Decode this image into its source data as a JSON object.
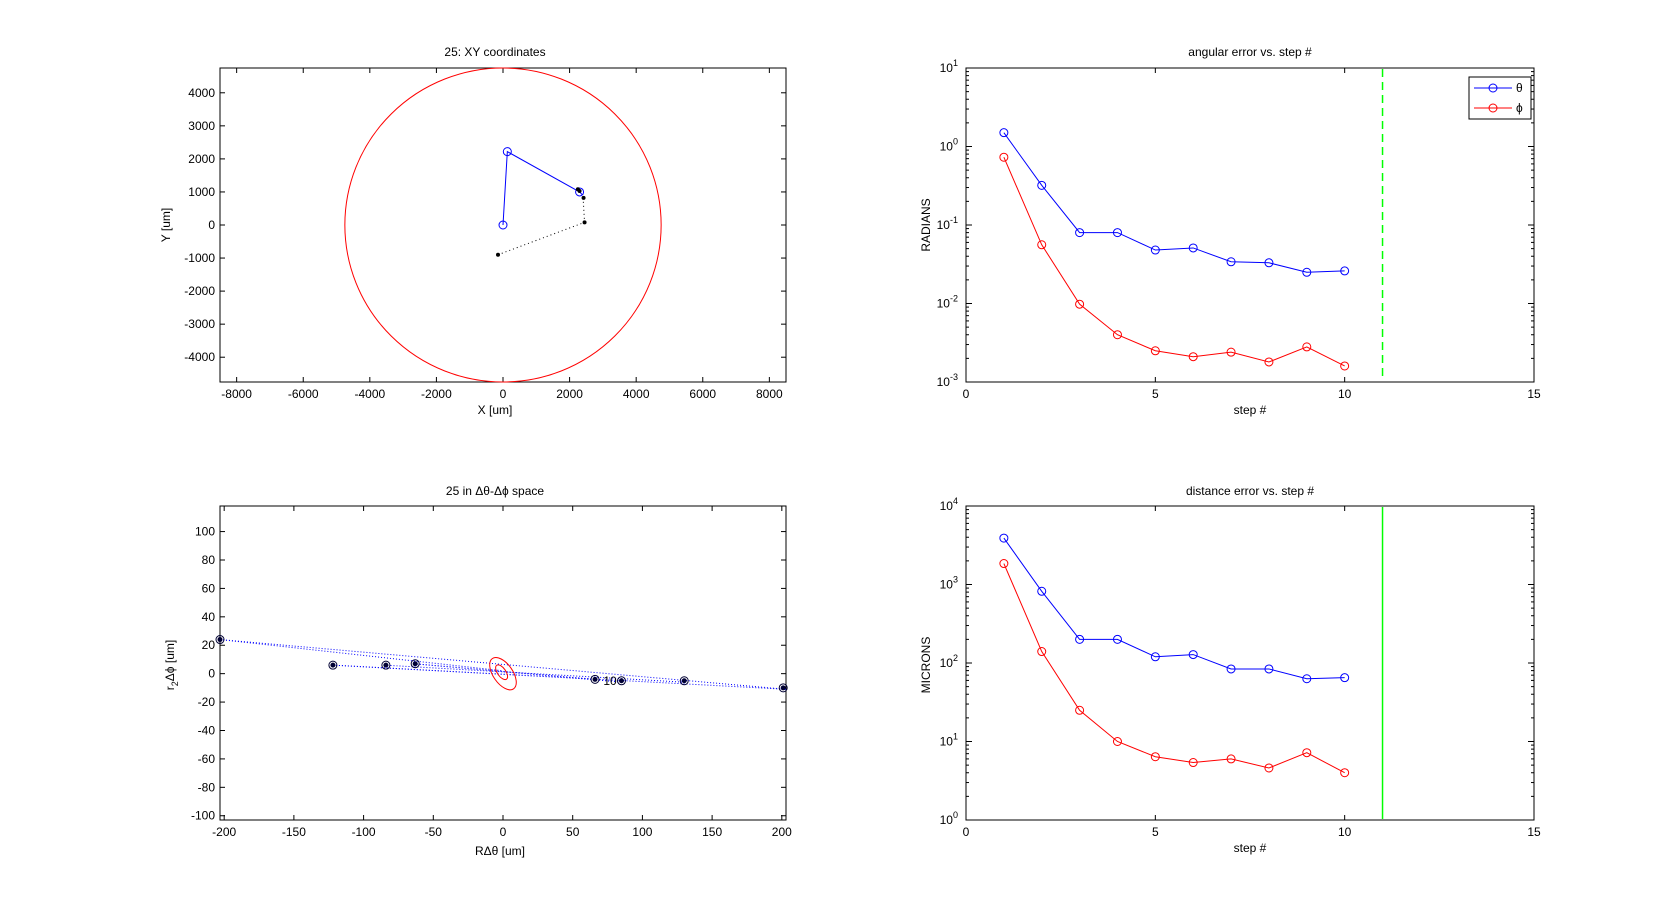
{
  "chart_data": [
    {
      "id": "xy",
      "type": "scatter",
      "title": "25: XY coordinates",
      "xlabel": "X [um]",
      "ylabel": "Y [um]",
      "xlim": [
        -8500,
        8500
      ],
      "ylim": [
        -4750,
        4750
      ],
      "xticks": [
        -8000,
        -6000,
        -4000,
        -2000,
        0,
        2000,
        4000,
        6000,
        8000
      ],
      "yticks": [
        -4000,
        -3000,
        -2000,
        -1000,
        0,
        1000,
        2000,
        3000,
        4000
      ],
      "circle": {
        "cx": 0,
        "cy": 0,
        "r": 4750,
        "color": "#ff0000"
      },
      "path": {
        "color": "#0000ff",
        "points": [
          [
            0,
            0
          ],
          [
            130,
            2220
          ],
          [
            2300,
            1000
          ],
          [
            2380,
            920
          ]
        ]
      },
      "dotted_path": {
        "color": "#000000",
        "points": [
          [
            -150,
            -900
          ],
          [
            2450,
            80
          ],
          [
            2400,
            920
          ],
          [
            2250,
            1050
          ]
        ]
      },
      "markers": {
        "color": "#000000",
        "points": [
          [
            -150,
            -900
          ],
          [
            2450,
            80
          ],
          [
            2420,
            820
          ],
          [
            2250,
            1080
          ],
          [
            2300,
            1030
          ]
        ]
      }
    },
    {
      "id": "angular",
      "type": "line",
      "title": "angular error vs. step #",
      "xlabel": "step #",
      "ylabel": "RADIANS",
      "yscale": "log",
      "xlim": [
        0,
        15
      ],
      "ylim_exp": [
        -3,
        1
      ],
      "xticks": [
        0,
        5,
        10,
        15
      ],
      "legend": {
        "placement": "top-right",
        "entries": [
          "θ",
          "ϕ"
        ]
      },
      "vline": {
        "x": 11,
        "color": "#00ff00",
        "style": "dashed"
      },
      "x": [
        1,
        2,
        3,
        4,
        5,
        6,
        7,
        8,
        9,
        10
      ],
      "series": [
        {
          "name": "θ",
          "color": "#0000ff",
          "values": [
            1.5,
            0.32,
            0.08,
            0.08,
            0.048,
            0.051,
            0.034,
            0.033,
            0.025,
            0.026
          ]
        },
        {
          "name": "ϕ",
          "color": "#ff0000",
          "values": [
            0.73,
            0.056,
            0.0098,
            0.004,
            0.0025,
            0.0021,
            0.0024,
            0.0018,
            0.0028,
            0.0016
          ]
        }
      ]
    },
    {
      "id": "dtheta",
      "type": "scatter",
      "title": "25 in Δθ-Δϕ space",
      "xlabel": "RΔθ [um]",
      "ylabel_main": "r",
      "ylabel_sub": "2",
      "ylabel_rest": "Δϕ [um]",
      "xlim": [
        -203,
        203
      ],
      "ylim": [
        -103,
        118
      ],
      "xticks": [
        -200,
        -150,
        -100,
        -50,
        0,
        50,
        100,
        150,
        200
      ],
      "yticks": [
        -100,
        -80,
        -60,
        -40,
        -20,
        0,
        20,
        40,
        60,
        80,
        100
      ],
      "point_label": {
        "text": "10",
        "x": 72,
        "y": -5
      },
      "ellipses": [
        {
          "cx": 0,
          "cy": 0,
          "rx": 7,
          "ry": 13,
          "angle_deg": -35,
          "color": "#ff0000"
        },
        {
          "cx": -1,
          "cy": 1,
          "rx": 3,
          "ry": 6,
          "angle_deg": -35,
          "color": "#ff0000"
        }
      ],
      "dotted_lines": {
        "color": "#0000ff",
        "segments": [
          [
            [
              -203,
              24
            ],
            [
              203,
              -11
            ]
          ],
          [
            [
              -122,
              6
            ],
            [
              203,
              -11
            ]
          ],
          [
            [
              -122,
              6
            ],
            [
              85,
              -5
            ]
          ],
          [
            [
              -85,
              6
            ],
            [
              130,
              -6
            ]
          ],
          [
            [
              -64,
              7
            ],
            [
              85,
              -6
            ]
          ],
          [
            [
              -64,
              7
            ],
            [
              66,
              -4
            ]
          ],
          [
            [
              -203,
              24
            ],
            [
              0,
              2
            ]
          ]
        ]
      },
      "points": {
        "color": "#000033",
        "xy": [
          [
            -203,
            24
          ],
          [
            -122,
            6
          ],
          [
            -84,
            6
          ],
          [
            -63,
            7
          ],
          [
            66,
            -4
          ],
          [
            85,
            -5
          ],
          [
            130,
            -5
          ],
          [
            201,
            -10
          ]
        ]
      }
    },
    {
      "id": "distance",
      "type": "line",
      "title": "distance error vs. step #",
      "xlabel": "step #",
      "ylabel": "MICRONS",
      "yscale": "log",
      "xlim": [
        0,
        15
      ],
      "ylim_exp": [
        0,
        4
      ],
      "xticks": [
        0,
        5,
        10,
        15
      ],
      "vline": {
        "x": 11,
        "color": "#00ff00",
        "style": "solid"
      },
      "x": [
        1,
        2,
        3,
        4,
        5,
        6,
        7,
        8,
        9,
        10
      ],
      "series": [
        {
          "name": "θ",
          "color": "#0000ff",
          "values": [
            3900,
            820,
            200,
            200,
            120,
            128,
            84,
            84,
            63,
            65
          ]
        },
        {
          "name": "ϕ",
          "color": "#ff0000",
          "values": [
            1850,
            140,
            25,
            10,
            6.4,
            5.4,
            6,
            4.6,
            7.2,
            4
          ]
        }
      ]
    }
  ]
}
